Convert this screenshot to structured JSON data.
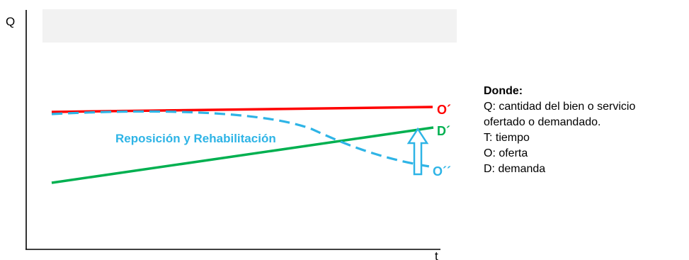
{
  "axes": {
    "y_label": "Q",
    "x_label": "t"
  },
  "curves": {
    "supply": {
      "label": "O´",
      "color": "#ff0000",
      "style": "solid"
    },
    "demand": {
      "label": "D´",
      "color": "#00b050",
      "style": "solid"
    },
    "supply_after": {
      "label": "O´´",
      "color": "#2eb4e6",
      "style": "dashed"
    }
  },
  "annotation": {
    "text": "Reposición y Rehabilitación",
    "color": "#2eb4e6"
  },
  "arrow": {
    "direction": "up",
    "color": "#2eb4e6"
  },
  "legend": {
    "title": "Donde:",
    "items": [
      "Q: cantidad del bien o servicio",
      "ofertado o demandado.",
      "T: tiempo",
      "O: oferta",
      "D: demanda"
    ]
  },
  "top_box_color": "#f2f2f2"
}
